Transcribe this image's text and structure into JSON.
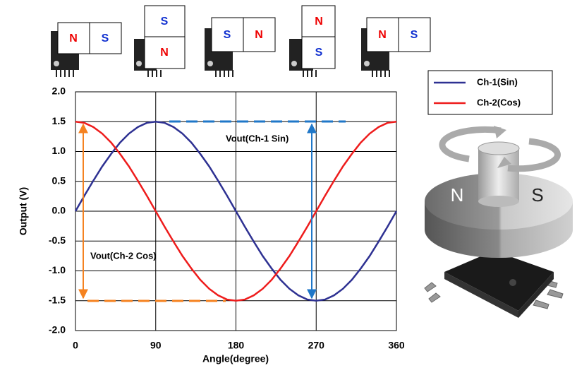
{
  "chart_data": {
    "type": "line",
    "x": [
      0,
      10,
      20,
      30,
      40,
      50,
      60,
      70,
      80,
      90,
      100,
      110,
      120,
      130,
      140,
      150,
      160,
      170,
      180,
      190,
      200,
      210,
      220,
      230,
      240,
      250,
      260,
      270,
      280,
      290,
      300,
      310,
      320,
      330,
      340,
      350,
      360
    ],
    "series": [
      {
        "name": "Ch-1(Sin)",
        "color": "#2e3192",
        "values": [
          0,
          0.26,
          0.51,
          0.75,
          0.96,
          1.15,
          1.3,
          1.41,
          1.48,
          1.5,
          1.48,
          1.41,
          1.3,
          1.15,
          0.96,
          0.75,
          0.51,
          0.26,
          0,
          -0.26,
          -0.51,
          -0.75,
          -0.96,
          -1.15,
          -1.3,
          -1.41,
          -1.48,
          -1.5,
          -1.48,
          -1.41,
          -1.3,
          -1.15,
          -0.96,
          -0.75,
          -0.51,
          -0.26,
          0
        ]
      },
      {
        "name": "Ch-2(Cos)",
        "color": "#ee1c1c",
        "values": [
          1.5,
          1.48,
          1.41,
          1.3,
          1.15,
          0.96,
          0.75,
          0.51,
          0.26,
          0,
          -0.26,
          -0.51,
          -0.75,
          -0.96,
          -1.15,
          -1.3,
          -1.41,
          -1.48,
          -1.5,
          -1.48,
          -1.41,
          -1.3,
          -1.15,
          -0.96,
          -0.75,
          -0.51,
          -0.26,
          0,
          0.26,
          0.51,
          0.75,
          0.96,
          1.15,
          1.3,
          1.41,
          1.48,
          1.5
        ]
      }
    ],
    "xlim": [
      0,
      360
    ],
    "xticks": [
      0,
      90,
      180,
      270,
      360
    ],
    "ylim": [
      -2,
      2
    ],
    "yticks": [
      {
        "value": -2,
        "label": "-2.0"
      },
      -1.5,
      {
        "value": -1,
        "label": "-1.0"
      },
      -0.5,
      {
        "value": 0,
        "label": "0.0"
      },
      0.5,
      {
        "value": 1,
        "label": "1.0"
      },
      1.5,
      {
        "value": 2,
        "label": "2.0"
      }
    ],
    "xlabel": "Angle(degree)",
    "ylabel": "Output (V)",
    "grid": true,
    "annotations": [
      "Vout(Ch-1 Sin)",
      "Vout(Ch-2 Cos)"
    ]
  },
  "illustrations": {
    "magnets": [
      [
        "N",
        "S"
      ],
      [
        "S",
        "N"
      ],
      [
        "S",
        "N"
      ],
      [
        "N",
        "S"
      ],
      [
        "N",
        "S"
      ]
    ],
    "disc": [
      "N",
      "S"
    ]
  }
}
